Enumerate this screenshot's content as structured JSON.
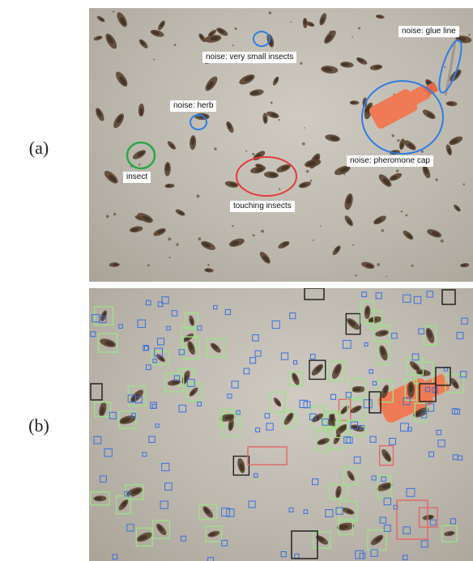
{
  "panel_a": {
    "letter": "(a)",
    "labels": {
      "noise_small_insects": "noise: very small insects",
      "noise_glue_line": "noise: glue line",
      "noise_herb": "noise: herb",
      "insect": "insect",
      "noise_pheromone_cap": "noise: pheromone cap",
      "touching_insects": "touching insects"
    },
    "marker_colors": {
      "noise": "#2f7ee0",
      "insect": "#2aa84a",
      "touching": "#e23b3b"
    }
  },
  "panel_b": {
    "letter": "(b)",
    "box_colors": {
      "insect": "#9ee08a",
      "small": "#3b6fe0",
      "merged": "#e06a6a",
      "edge": "#222222"
    }
  },
  "colors": {
    "board": "#c3beb4",
    "insect_body": "#5a4532",
    "cap": "#f07a55"
  }
}
